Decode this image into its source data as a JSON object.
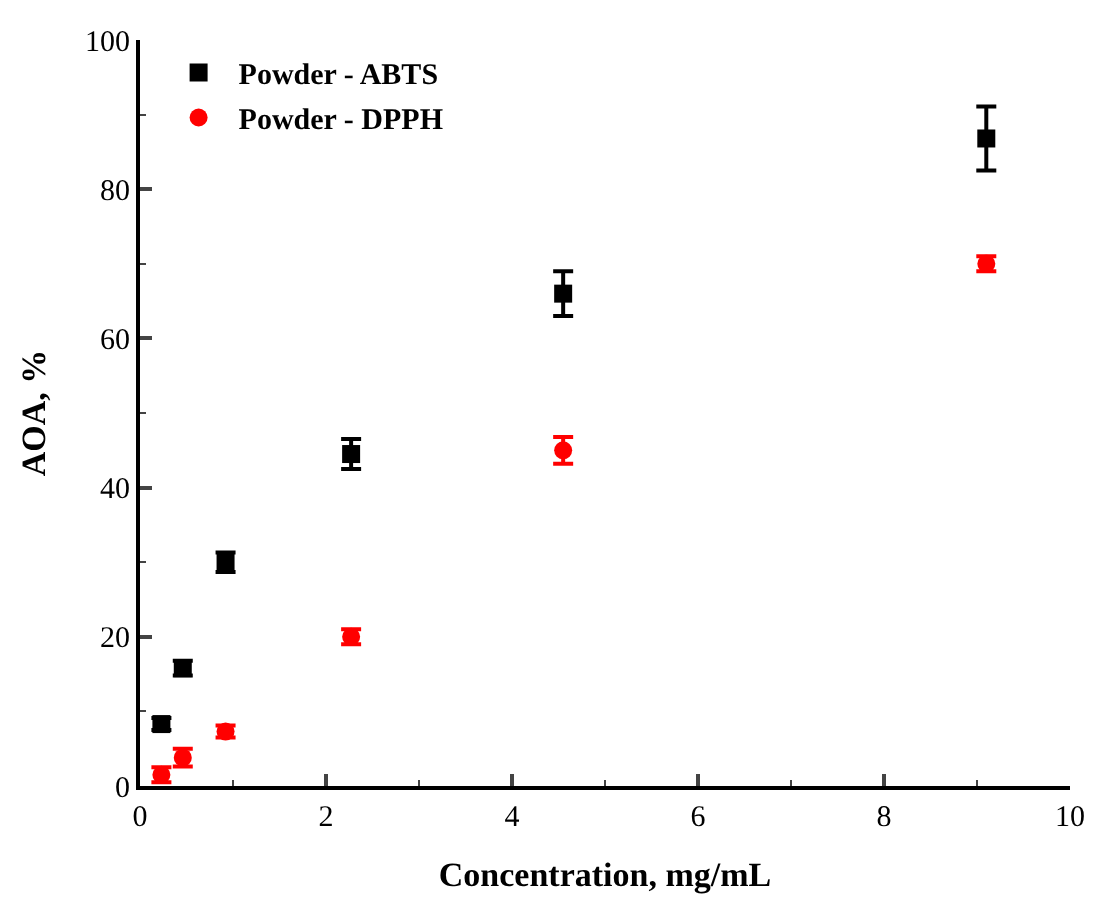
{
  "chart_data": {
    "type": "scatter",
    "xlabel": "Concentration, mg/mL",
    "ylabel": "AOA, %",
    "x": [
      0.23,
      0.46,
      0.92,
      2.27,
      4.55,
      9.1
    ],
    "series": [
      {
        "name": "Powder - ABTS",
        "color": "#000000",
        "marker": "square",
        "values": [
          8.3,
          15.8,
          30,
          44.5,
          66,
          86.8
        ],
        "errors": [
          0.8,
          1,
          1.3,
          2,
          3,
          4.3
        ]
      },
      {
        "name": "Powder - DPPH",
        "color": "#ff0000",
        "values": [
          1.5,
          3.8,
          7.3,
          20,
          45,
          70
        ],
        "errors": [
          1,
          1.2,
          0.8,
          1,
          1.8,
          1
        ]
      }
    ],
    "xlim": [
      0,
      10
    ],
    "xticks": [
      0,
      2,
      4,
      6,
      8,
      10
    ],
    "ylim": [
      0,
      100
    ],
    "yticks": [
      0,
      20,
      40,
      60,
      80,
      100
    ],
    "legend": "top left"
  }
}
